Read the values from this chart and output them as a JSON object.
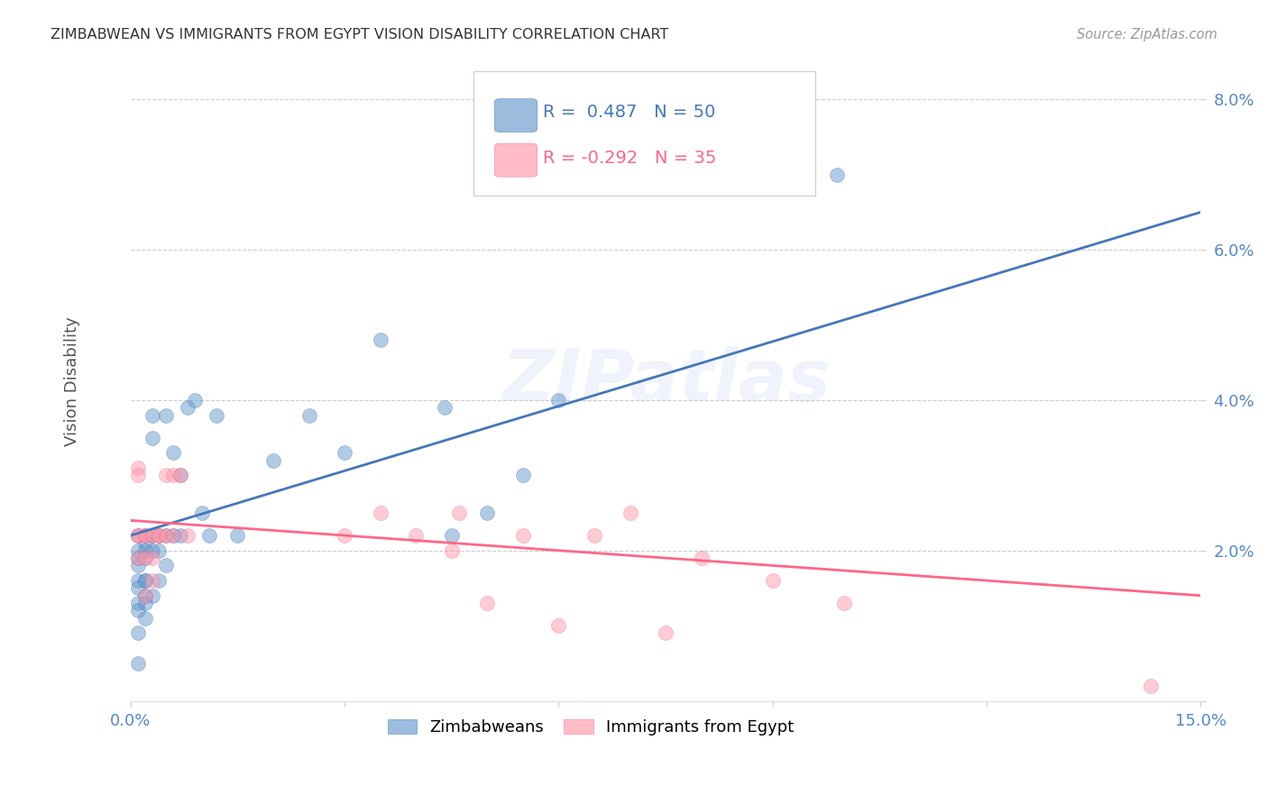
{
  "title": "ZIMBABWEAN VS IMMIGRANTS FROM EGYPT VISION DISABILITY CORRELATION CHART",
  "source": "Source: ZipAtlas.com",
  "ylabel": "Vision Disability",
  "xlim": [
    0.0,
    0.15
  ],
  "ylim": [
    0.0,
    0.085
  ],
  "xticks": [
    0.0,
    0.03,
    0.06,
    0.09,
    0.12,
    0.15
  ],
  "xtick_labels": [
    "0.0%",
    "",
    "",
    "",
    "",
    "15.0%"
  ],
  "yticks": [
    0.0,
    0.02,
    0.04,
    0.06,
    0.08
  ],
  "ytick_labels": [
    "",
    "2.0%",
    "4.0%",
    "6.0%",
    "8.0%"
  ],
  "blue_R": 0.487,
  "blue_N": 50,
  "pink_R": -0.292,
  "pink_N": 35,
  "blue_color": "#6699CC",
  "pink_color": "#FF99AA",
  "blue_line_color": "#4477BB",
  "pink_line_color": "#FF6688",
  "legend_blue_label": "Zimbabweans",
  "legend_pink_label": "Immigrants from Egypt",
  "watermark": "ZIPatlas",
  "blue_line_x": [
    0.0,
    0.15
  ],
  "blue_line_y": [
    0.022,
    0.065
  ],
  "pink_line_x": [
    0.0,
    0.15
  ],
  "pink_line_y": [
    0.024,
    0.014
  ],
  "blue_points_x": [
    0.001,
    0.001,
    0.001,
    0.001,
    0.001,
    0.001,
    0.001,
    0.001,
    0.001,
    0.001,
    0.002,
    0.002,
    0.002,
    0.002,
    0.002,
    0.002,
    0.002,
    0.002,
    0.002,
    0.003,
    0.003,
    0.003,
    0.003,
    0.003,
    0.004,
    0.004,
    0.004,
    0.005,
    0.005,
    0.005,
    0.006,
    0.006,
    0.007,
    0.007,
    0.008,
    0.009,
    0.01,
    0.011,
    0.012,
    0.015,
    0.02,
    0.025,
    0.03,
    0.035,
    0.044,
    0.045,
    0.05,
    0.055,
    0.06,
    0.099
  ],
  "blue_points_y": [
    0.022,
    0.02,
    0.019,
    0.018,
    0.016,
    0.015,
    0.013,
    0.012,
    0.009,
    0.005,
    0.022,
    0.021,
    0.02,
    0.019,
    0.016,
    0.016,
    0.014,
    0.013,
    0.011,
    0.022,
    0.02,
    0.035,
    0.038,
    0.014,
    0.022,
    0.02,
    0.016,
    0.022,
    0.018,
    0.038,
    0.022,
    0.033,
    0.022,
    0.03,
    0.039,
    0.04,
    0.025,
    0.022,
    0.038,
    0.022,
    0.032,
    0.038,
    0.033,
    0.048,
    0.039,
    0.022,
    0.025,
    0.03,
    0.04,
    0.07
  ],
  "pink_points_x": [
    0.001,
    0.001,
    0.001,
    0.001,
    0.001,
    0.002,
    0.002,
    0.002,
    0.002,
    0.003,
    0.003,
    0.003,
    0.004,
    0.004,
    0.005,
    0.005,
    0.006,
    0.006,
    0.007,
    0.008,
    0.03,
    0.035,
    0.04,
    0.045,
    0.046,
    0.05,
    0.055,
    0.06,
    0.065,
    0.07,
    0.075,
    0.08,
    0.09,
    0.1,
    0.143
  ],
  "pink_points_y": [
    0.022,
    0.022,
    0.031,
    0.03,
    0.019,
    0.022,
    0.019,
    0.022,
    0.014,
    0.022,
    0.019,
    0.016,
    0.022,
    0.022,
    0.022,
    0.03,
    0.022,
    0.03,
    0.03,
    0.022,
    0.022,
    0.025,
    0.022,
    0.02,
    0.025,
    0.013,
    0.022,
    0.01,
    0.022,
    0.025,
    0.009,
    0.019,
    0.016,
    0.013,
    0.002
  ]
}
